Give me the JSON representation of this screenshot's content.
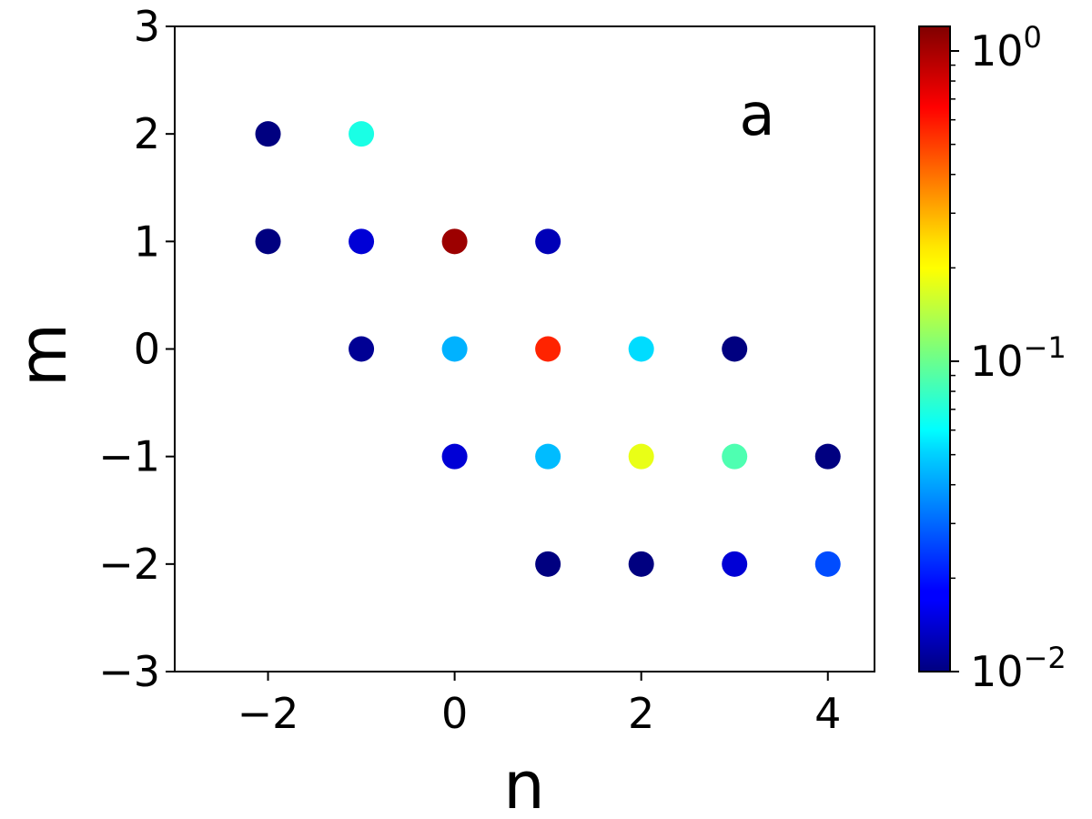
{
  "chart_data": {
    "type": "scatter",
    "x_label": "n",
    "y_label": "m",
    "annotation": "a",
    "x": [
      -2,
      -1,
      -2,
      -1,
      0,
      1,
      -1,
      0,
      1,
      2,
      3,
      0,
      1,
      2,
      3,
      4,
      1,
      2,
      3,
      4
    ],
    "y": [
      2,
      2,
      1,
      1,
      1,
      1,
      0,
      0,
      0,
      0,
      0,
      -1,
      -1,
      -1,
      -1,
      -1,
      -2,
      -2,
      -2,
      -2
    ],
    "values": [
      0.01,
      0.068,
      0.01,
      0.015,
      1.05,
      0.013,
      0.011,
      0.042,
      0.56,
      0.051,
      0.01,
      0.015,
      0.044,
      0.18,
      0.087,
      0.01,
      0.01,
      0.01,
      0.015,
      0.026
    ],
    "colormap": "jet",
    "color_scale": "log",
    "xlim": [
      -3,
      4.5
    ],
    "ylim": [
      -3,
      3
    ],
    "clim": [
      0.01,
      1.2
    ],
    "xticks": [
      {
        "value": -2,
        "label": "−2"
      },
      0,
      2,
      4
    ],
    "yticks": [
      {
        "value": -3,
        "label": "−3"
      },
      {
        "value": -2,
        "label": "−2"
      },
      {
        "value": -1,
        "label": "−1"
      },
      0,
      1,
      2,
      3
    ],
    "cticks": [
      {
        "value": 0.01,
        "label": "10",
        "exponent": "−2"
      },
      {
        "value": 0.1,
        "label": "10",
        "exponent": "−1"
      },
      {
        "value": 1,
        "label": "10",
        "exponent": "0"
      }
    ],
    "cticks_minor": [
      0.02,
      0.03,
      0.04,
      0.05,
      0.06,
      0.07,
      0.08,
      0.09,
      0.2,
      0.3,
      0.4,
      0.5,
      0.6,
      0.7,
      0.8,
      0.9
    ]
  }
}
